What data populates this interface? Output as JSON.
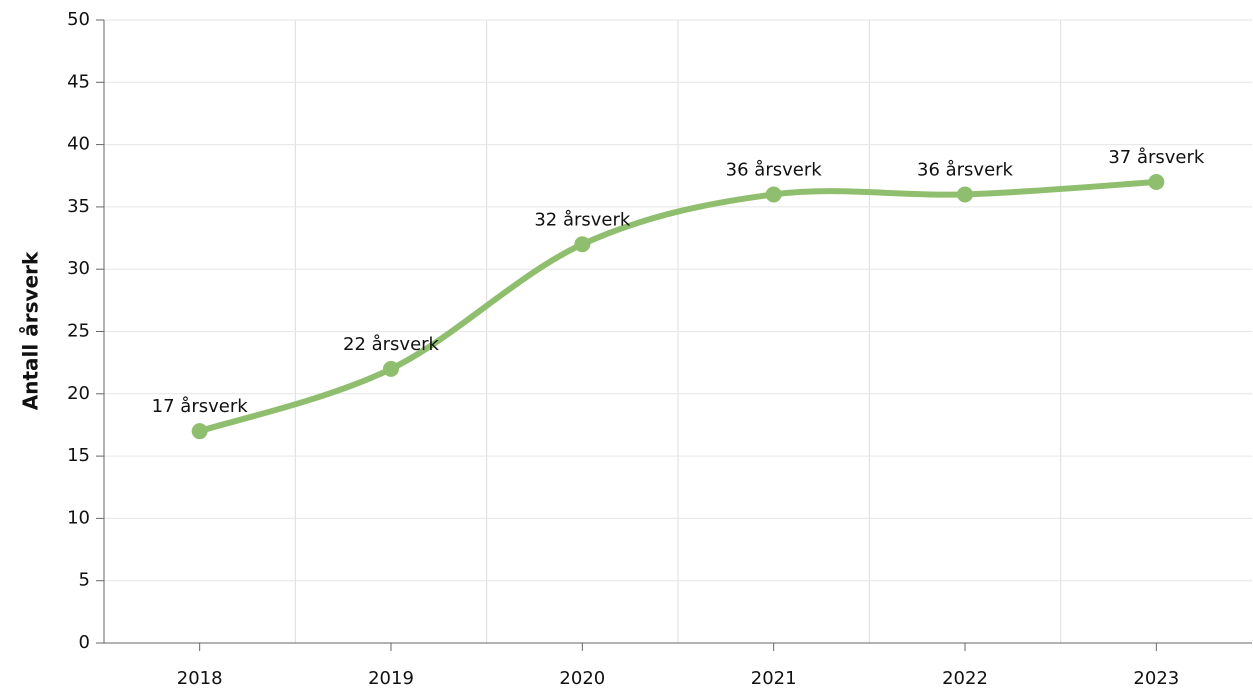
{
  "chart_data": {
    "type": "line",
    "ylabel": "Antall årsverk",
    "categories": [
      "2018",
      "2019",
      "2020",
      "2021",
      "2022",
      "2023"
    ],
    "values": [
      17,
      22,
      32,
      36,
      36,
      37
    ],
    "value_labels": [
      "17 årsverk",
      "22 årsverk",
      "32 årsverk",
      "36 årsverk",
      "36 årsverk",
      "37 årsverk"
    ],
    "color": "#8fbf6e",
    "ylim": [
      0,
      50
    ],
    "yticks": [
      0,
      5,
      10,
      15,
      20,
      25,
      30,
      35,
      40,
      45,
      50
    ],
    "grid": true,
    "smooth": true
  }
}
